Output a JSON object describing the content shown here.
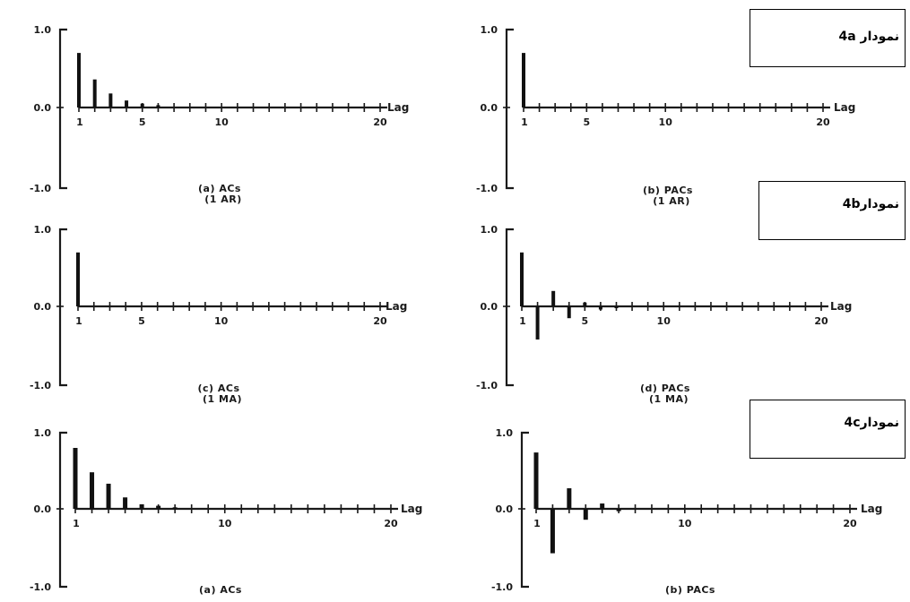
{
  "labels": {
    "box_4a": "نمودار 4a",
    "box_4b": "نمودار4b",
    "box_4c": "نمودار4c"
  },
  "chart_data": [
    {
      "type": "bar",
      "title": "(a) ACs",
      "subtitle": "(1 AR)",
      "xlabel": "Lag",
      "x_ticks": [
        "1",
        "5",
        "10",
        "20"
      ],
      "y_ticks": [
        "1.0",
        "0.0",
        "-1.0"
      ],
      "ylim": [
        -1,
        1
      ],
      "xlim": [
        0,
        20
      ],
      "lags": [
        1,
        2,
        3,
        4,
        5,
        6
      ],
      "values": [
        0.7,
        0.36,
        0.18,
        0.09,
        0.05,
        0.03
      ]
    },
    {
      "type": "bar",
      "title": "(b) PACs",
      "subtitle": "(1 AR)",
      "xlabel": "Lag",
      "x_ticks": [
        "1",
        "5",
        "10",
        "20"
      ],
      "y_ticks": [
        "1.0",
        "0.0",
        "-1.0"
      ],
      "ylim": [
        -1,
        1
      ],
      "xlim": [
        0,
        20
      ],
      "lags": [
        1
      ],
      "values": [
        0.7
      ]
    },
    {
      "type": "bar",
      "title": "(c) ACs",
      "subtitle": "(1 MA)",
      "xlabel": "Lag",
      "x_ticks": [
        "1",
        "5",
        "10",
        "20"
      ],
      "y_ticks": [
        "1.0",
        "0.0",
        "-1.0"
      ],
      "ylim": [
        -1,
        1
      ],
      "xlim": [
        0,
        20
      ],
      "lags": [
        1
      ],
      "values": [
        0.7
      ]
    },
    {
      "type": "bar",
      "title": "(d) PACs",
      "subtitle": "(1 MA)",
      "xlabel": "Lag",
      "x_ticks": [
        "1",
        "5",
        "10",
        "20"
      ],
      "y_ticks": [
        "1.0",
        "0.0",
        "-1.0"
      ],
      "ylim": [
        -1,
        1
      ],
      "xlim": [
        0,
        20
      ],
      "lags": [
        1,
        2,
        3,
        4,
        5,
        6,
        7
      ],
      "values": [
        0.7,
        -0.42,
        0.2,
        -0.15,
        0.05,
        -0.04,
        -0.02
      ]
    },
    {
      "type": "bar",
      "title": "(a) ACs",
      "subtitle": "",
      "xlabel": "Lag",
      "x_ticks": [
        "1",
        "10",
        "20"
      ],
      "y_ticks": [
        "1.0",
        "0.0",
        "-1.0"
      ],
      "ylim": [
        -1,
        1
      ],
      "xlim": [
        0,
        20
      ],
      "lags": [
        1,
        2,
        3,
        4,
        5,
        6,
        7
      ],
      "values": [
        0.8,
        0.48,
        0.33,
        0.15,
        0.06,
        0.04,
        0.02
      ]
    },
    {
      "type": "bar",
      "title": "(b) PACs",
      "subtitle": "",
      "xlabel": "Lag",
      "x_ticks": [
        "1",
        "10",
        "20"
      ],
      "y_ticks": [
        "1.0",
        "0.0",
        "-1.0"
      ],
      "ylim": [
        -1,
        1
      ],
      "xlim": [
        0,
        20
      ],
      "lags": [
        1,
        2,
        3,
        4,
        5,
        6
      ],
      "values": [
        0.74,
        -0.57,
        0.27,
        -0.14,
        0.07,
        -0.03
      ]
    }
  ]
}
